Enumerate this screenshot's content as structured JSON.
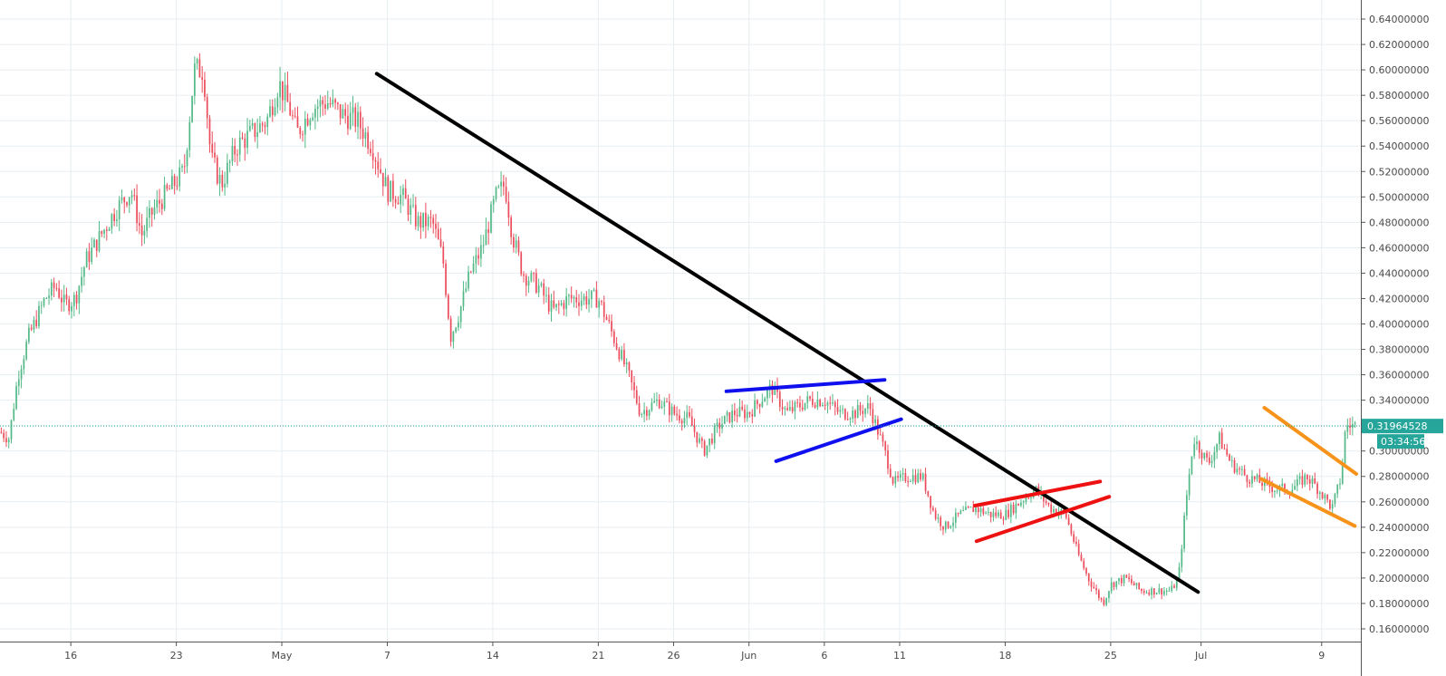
{
  "chart_data": {
    "type": "candlestick",
    "title": "",
    "xlabel": "",
    "ylabel": "",
    "ylim": [
      0.15,
      0.655
    ],
    "y_ticks": [
      "0.16000000",
      "0.18000000",
      "0.20000000",
      "0.22000000",
      "0.24000000",
      "0.26000000",
      "0.28000000",
      "0.30000000",
      "0.32000000",
      "0.34000000",
      "0.36000000",
      "0.38000000",
      "0.40000000",
      "0.42000000",
      "0.44000000",
      "0.46000000",
      "0.48000000",
      "0.50000000",
      "0.52000000",
      "0.54000000",
      "0.56000000",
      "0.58000000",
      "0.60000000",
      "0.62000000",
      "0.64000000"
    ],
    "x_ticks": [
      {
        "label": "16",
        "day": 16
      },
      {
        "label": "23",
        "day": 23
      },
      {
        "label": "May",
        "day": 30
      },
      {
        "label": "7",
        "day": 37
      },
      {
        "label": "14",
        "day": 44
      },
      {
        "label": "21",
        "day": 51
      },
      {
        "label": "26",
        "day": 56
      },
      {
        "label": "Jun",
        "day": 61
      },
      {
        "label": "6",
        "day": 66
      },
      {
        "label": "11",
        "day": 71
      },
      {
        "label": "18",
        "day": 78
      },
      {
        "label": "25",
        "day": 85
      },
      {
        "label": "Jul",
        "day": 91
      },
      {
        "label": "9",
        "day": 99
      }
    ],
    "xlim_day": [
      11.3,
      101.6
    ],
    "grid": true,
    "price_key_points": [
      [
        11.3,
        0.315
      ],
      [
        11.9,
        0.31
      ],
      [
        12.5,
        0.36
      ],
      [
        13.2,
        0.39
      ],
      [
        14.3,
        0.42
      ],
      [
        15.0,
        0.43
      ],
      [
        15.6,
        0.415
      ],
      [
        16.3,
        0.42
      ],
      [
        17.0,
        0.45
      ],
      [
        18.0,
        0.47
      ],
      [
        19.0,
        0.49
      ],
      [
        20.0,
        0.505
      ],
      [
        20.7,
        0.47
      ],
      [
        21.5,
        0.49
      ],
      [
        22.5,
        0.505
      ],
      [
        23.5,
        0.52
      ],
      [
        24.2,
        0.6
      ],
      [
        24.8,
        0.6
      ],
      [
        25.3,
        0.53
      ],
      [
        26.0,
        0.51
      ],
      [
        27.0,
        0.54
      ],
      [
        28.0,
        0.55
      ],
      [
        29.0,
        0.56
      ],
      [
        29.8,
        0.59
      ],
      [
        30.5,
        0.57
      ],
      [
        31.0,
        0.55
      ],
      [
        32.0,
        0.57
      ],
      [
        33.0,
        0.575
      ],
      [
        34.0,
        0.565
      ],
      [
        35.0,
        0.56
      ],
      [
        36.0,
        0.54
      ],
      [
        37.0,
        0.505
      ],
      [
        38.0,
        0.5
      ],
      [
        39.0,
        0.48
      ],
      [
        40.0,
        0.48
      ],
      [
        40.7,
        0.45
      ],
      [
        41.2,
        0.39
      ],
      [
        41.8,
        0.41
      ],
      [
        42.5,
        0.44
      ],
      [
        43.3,
        0.46
      ],
      [
        44.2,
        0.5
      ],
      [
        44.8,
        0.51
      ],
      [
        45.3,
        0.47
      ],
      [
        46.0,
        0.44
      ],
      [
        47.0,
        0.43
      ],
      [
        48.0,
        0.41
      ],
      [
        49.0,
        0.42
      ],
      [
        50.0,
        0.42
      ],
      [
        51.0,
        0.42
      ],
      [
        52.0,
        0.39
      ],
      [
        53.0,
        0.36
      ],
      [
        53.8,
        0.33
      ],
      [
        55.0,
        0.34
      ],
      [
        56.0,
        0.33
      ],
      [
        57.0,
        0.325
      ],
      [
        58.0,
        0.3
      ],
      [
        59.0,
        0.32
      ],
      [
        60.0,
        0.33
      ],
      [
        61.0,
        0.33
      ],
      [
        62.5,
        0.35
      ],
      [
        63.5,
        0.33
      ],
      [
        65.0,
        0.34
      ],
      [
        66.0,
        0.34
      ],
      [
        67.0,
        0.33
      ],
      [
        68.0,
        0.33
      ],
      [
        69.0,
        0.335
      ],
      [
        70.0,
        0.3
      ],
      [
        70.6,
        0.275
      ],
      [
        71.5,
        0.28
      ],
      [
        72.5,
        0.28
      ],
      [
        73.3,
        0.25
      ],
      [
        74.0,
        0.24
      ],
      [
        75.0,
        0.25
      ],
      [
        76.0,
        0.255
      ],
      [
        77.0,
        0.25
      ],
      [
        78.0,
        0.25
      ],
      [
        79.0,
        0.26
      ],
      [
        80.0,
        0.27
      ],
      [
        81.0,
        0.255
      ],
      [
        82.0,
        0.25
      ],
      [
        82.8,
        0.22
      ],
      [
        83.5,
        0.2
      ],
      [
        84.5,
        0.18
      ],
      [
        85.0,
        0.195
      ],
      [
        86.0,
        0.2
      ],
      [
        87.0,
        0.19
      ],
      [
        88.0,
        0.19
      ],
      [
        89.0,
        0.19
      ],
      [
        89.5,
        0.2
      ],
      [
        90.0,
        0.26
      ],
      [
        90.5,
        0.31
      ],
      [
        91.0,
        0.3
      ],
      [
        91.5,
        0.29
      ],
      [
        92.2,
        0.31
      ],
      [
        93.0,
        0.29
      ],
      [
        94.0,
        0.28
      ],
      [
        95.0,
        0.275
      ],
      [
        96.0,
        0.27
      ],
      [
        97.0,
        0.27
      ],
      [
        98.0,
        0.28
      ],
      [
        98.8,
        0.27
      ],
      [
        99.7,
        0.255
      ],
      [
        100.3,
        0.28
      ],
      [
        100.6,
        0.32
      ]
    ],
    "trendlines": [
      {
        "color": "#000000",
        "points": [
          [
            36.3,
            0.597
          ],
          [
            90.8,
            0.189
          ]
        ]
      },
      {
        "color": "#1010ee",
        "points": [
          [
            59.5,
            0.347
          ],
          [
            70.0,
            0.356
          ]
        ]
      },
      {
        "color": "#1010ee",
        "points": [
          [
            62.8,
            0.292
          ],
          [
            71.1,
            0.325
          ]
        ]
      },
      {
        "color": "#ee1111",
        "points": [
          [
            76.0,
            0.257
          ],
          [
            84.3,
            0.276
          ]
        ]
      },
      {
        "color": "#ee1111",
        "points": [
          [
            76.1,
            0.229
          ],
          [
            84.9,
            0.264
          ]
        ]
      },
      {
        "color": "#f7931a",
        "points": [
          [
            95.2,
            0.334
          ],
          [
            101.3,
            0.282
          ]
        ]
      },
      {
        "color": "#f7931a",
        "points": [
          [
            95.0,
            0.278
          ],
          [
            101.2,
            0.241
          ]
        ]
      }
    ],
    "colors": {
      "up": "#53b987",
      "down": "#eb4d5c",
      "current_price_line": "#26a69a"
    },
    "current_price": "0.31964528",
    "current_price_value": 0.31964528,
    "countdown": "03:34:56"
  }
}
